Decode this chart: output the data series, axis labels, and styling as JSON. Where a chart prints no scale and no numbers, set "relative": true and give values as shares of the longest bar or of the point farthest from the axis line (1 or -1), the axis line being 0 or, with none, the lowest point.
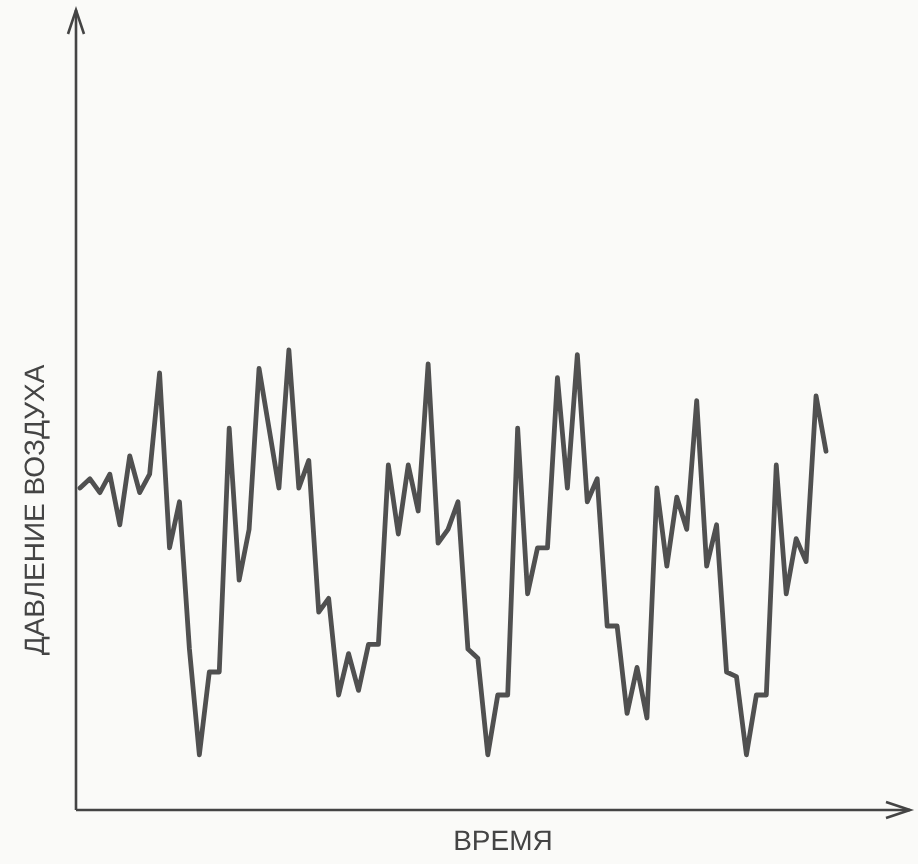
{
  "chart_data": {
    "type": "line",
    "relative": true,
    "xlabel": "ВРЕМЯ",
    "ylabel": "ДАВЛЕНИЕ ВОЗДУХА",
    "marker": "none",
    "line_style": "solid",
    "categories": [
      null,
      null,
      null,
      null,
      null,
      null,
      null,
      null,
      null,
      null,
      null,
      null,
      null,
      null,
      null,
      null,
      null,
      null,
      null,
      null,
      null,
      null,
      null,
      null,
      null,
      null,
      null,
      null,
      null,
      null,
      null,
      null,
      null,
      null,
      null,
      null,
      null,
      null,
      null,
      null,
      null,
      null,
      null,
      null,
      null,
      null,
      null,
      null,
      null,
      null,
      null,
      null,
      null,
      null,
      null,
      null,
      null,
      null,
      null,
      null,
      null,
      null,
      null,
      null,
      null,
      null,
      null,
      null,
      null,
      null,
      null,
      null,
      null,
      null,
      null,
      null
    ],
    "series": [
      {
        "color": "#505050",
        "values": [
          0.7,
          0.72,
          0.69,
          0.73,
          0.62,
          0.77,
          0.69,
          0.73,
          0.95,
          0.57,
          0.67,
          0.35,
          0.12,
          0.3,
          0.3,
          0.83,
          0.5,
          0.61,
          0.96,
          0.83,
          0.7,
          1.0,
          0.7,
          0.76,
          0.43,
          0.46,
          0.25,
          0.34,
          0.26,
          0.36,
          0.36,
          0.75,
          0.6,
          0.75,
          0.65,
          0.97,
          0.58,
          0.61,
          0.67,
          0.35,
          0.33,
          0.12,
          0.25,
          0.25,
          0.83,
          0.47,
          0.57,
          0.57,
          0.94,
          0.7,
          0.99,
          0.67,
          0.72,
          0.4,
          0.4,
          0.21,
          0.31,
          0.2,
          0.7,
          0.53,
          0.68,
          0.61,
          0.89,
          0.53,
          0.62,
          0.3,
          0.29,
          0.12,
          0.25,
          0.25,
          0.75,
          0.47,
          0.59,
          0.54,
          0.9,
          0.78
        ]
      }
    ]
  }
}
